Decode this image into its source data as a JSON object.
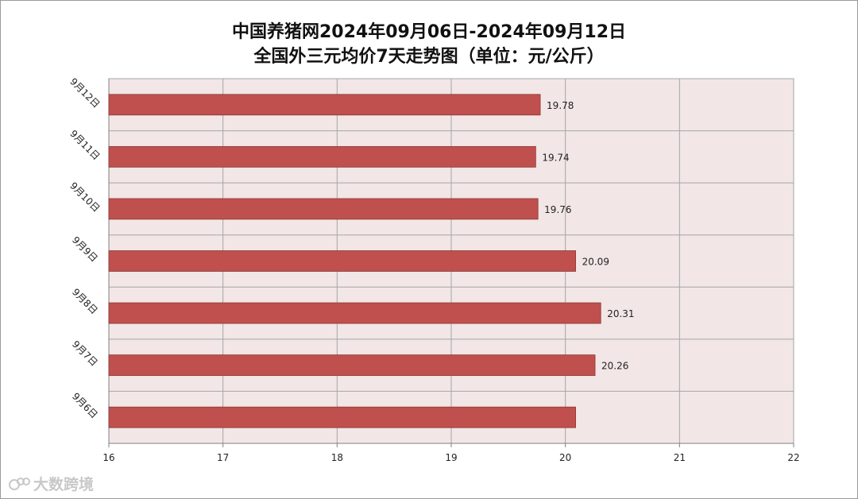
{
  "chart_data": {
    "type": "bar",
    "orientation": "horizontal",
    "title_line1": "中国养猪网2024年09月06日-2024年09月12日",
    "title_line2": "全国外三元均价7天走势图（单位：元/公斤）",
    "categories": [
      "9月12日",
      "9月11日",
      "9月10日",
      "9月9日",
      "9月8日",
      "9月7日",
      "9月6日"
    ],
    "values": [
      19.78,
      19.74,
      19.76,
      20.09,
      20.31,
      20.26,
      20.09
    ],
    "data_labels": [
      "19.78",
      "19.74",
      "19.76",
      "20.09",
      "20.31",
      "20.26",
      ""
    ],
    "x_ticks": [
      "16",
      "17",
      "18",
      "19",
      "20",
      "21",
      "22"
    ],
    "xlim": [
      16,
      22
    ],
    "grid": true,
    "colors": {
      "bar": "#c0504d",
      "bar_edge": "#8c3836",
      "plot_bg": "#f2e6e6",
      "grid": "#a6a6a6"
    }
  },
  "watermark": {
    "text": "大数跨境",
    "icon": "bee-logo-icon"
  }
}
